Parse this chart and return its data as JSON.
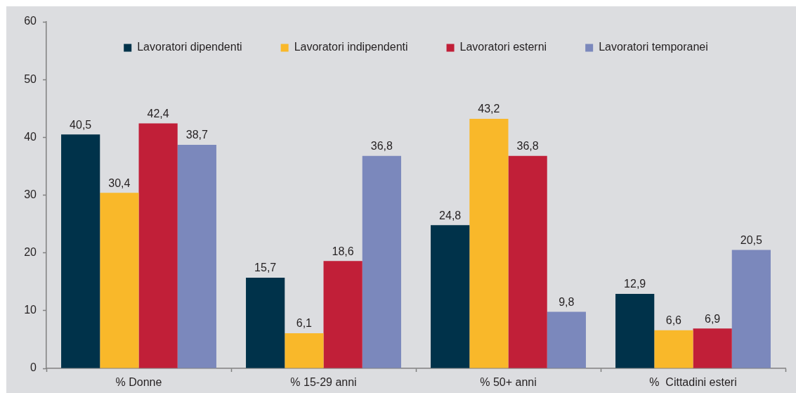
{
  "chart_data": {
    "type": "bar",
    "categories": [
      "% Donne",
      "% 15-29 anni",
      "% 50+ anni",
      "%  Cittadini esteri"
    ],
    "series": [
      {
        "name": "Lavoratori dipendenti",
        "color": "#00324a",
        "values": [
          40.5,
          15.7,
          24.8,
          12.9
        ],
        "value_labels": [
          "40,5",
          "15,7",
          "24,8",
          "12,9"
        ]
      },
      {
        "name": "Lavoratori indipendenti",
        "color": "#f9b82a",
        "values": [
          30.4,
          6.1,
          43.2,
          6.6
        ],
        "value_labels": [
          "30,4",
          "6,1",
          "43,2",
          "6,6"
        ]
      },
      {
        "name": "Lavoratori esterni",
        "color": "#c11f38",
        "values": [
          42.4,
          18.6,
          36.8,
          6.9
        ],
        "value_labels": [
          "42,4",
          "18,6",
          "36,8",
          "6,9"
        ]
      },
      {
        "name": "Lavoratori temporanei",
        "color": "#7b88bc",
        "values": [
          38.7,
          36.8,
          9.8,
          20.5
        ],
        "value_labels": [
          "38,7",
          "36,8",
          "9,8",
          "20,5"
        ]
      }
    ],
    "ylim": [
      0,
      60
    ],
    "yticks": [
      0,
      10,
      20,
      30,
      40,
      50,
      60
    ],
    "legend": "top",
    "grid": false
  }
}
